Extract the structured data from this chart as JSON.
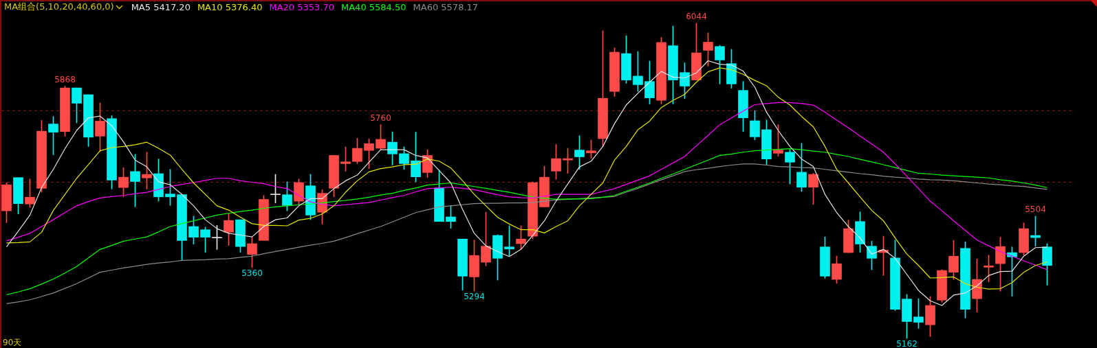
{
  "chart_data": {
    "type": "candlestick",
    "title": "MA组合(5,10,20,40,60,0)",
    "categories": [
      null,
      null,
      null,
      null,
      null,
      null,
      null,
      null,
      null,
      null,
      null,
      null,
      null,
      null,
      null,
      null,
      null,
      null,
      null,
      null,
      null,
      null,
      null,
      null,
      null,
      null,
      null,
      null,
      null,
      null,
      null,
      null,
      null,
      null,
      null,
      null,
      null,
      null,
      null,
      null,
      null,
      null,
      null,
      null,
      null,
      null,
      null,
      null,
      null,
      null,
      null,
      null,
      null,
      null,
      null,
      null,
      null,
      null,
      null,
      null,
      null,
      null,
      null,
      null,
      null,
      null,
      null,
      null,
      null,
      null,
      null,
      null,
      null,
      null,
      null,
      null,
      null,
      null,
      null,
      null,
      null,
      null,
      null,
      null,
      null,
      null,
      null,
      null,
      null,
      null
    ],
    "ylim": [
      5135,
      6109
    ],
    "yticks": [
      {
        "value": 5600,
        "label": null
      },
      {
        "value": 5800,
        "label": null
      }
    ],
    "grid": "y",
    "tick_labels": false,
    "legend": "top left",
    "ohlc": [
      [
        5519,
        5598,
        5486,
        5592
      ],
      [
        5612,
        5612,
        5510,
        5539
      ],
      [
        5538,
        5608,
        5528,
        5557
      ],
      [
        5582,
        5772,
        5571,
        5742
      ],
      [
        5762,
        5783,
        5676,
        5739
      ],
      [
        5741,
        5868,
        5728,
        5863
      ],
      [
        5863,
        5863,
        5765,
        5820
      ],
      [
        5844,
        5844,
        5699,
        5725
      ],
      [
        5728,
        5821,
        5685,
        5770
      ],
      [
        5777,
        5785,
        5580,
        5605
      ],
      [
        5584,
        5640,
        5558,
        5613
      ],
      [
        5629,
        5677,
        5530,
        5601
      ],
      [
        5611,
        5683,
        5580,
        5621
      ],
      [
        5623,
        5664,
        5546,
        5558
      ],
      [
        5566,
        5635,
        5534,
        5558
      ],
      [
        5564,
        5564,
        5380,
        5436
      ],
      [
        5475,
        5504,
        5426,
        5445
      ],
      [
        5466,
        5473,
        5403,
        5445
      ],
      [
        5443,
        5478,
        5411,
        5443
      ],
      [
        5459,
        5512,
        5422,
        5492
      ],
      [
        5494,
        5494,
        5403,
        5419
      ],
      [
        5397,
        5445,
        5360,
        5427
      ],
      [
        5436,
        5562,
        5436,
        5551
      ],
      [
        5564,
        5621,
        5541,
        5564
      ],
      [
        5564,
        5600,
        5519,
        5534
      ],
      [
        5546,
        5608,
        5537,
        5598
      ],
      [
        5589,
        5621,
        5494,
        5507
      ],
      [
        5515,
        5578,
        5482,
        5568
      ],
      [
        5582,
        5674,
        5558,
        5674
      ],
      [
        5651,
        5698,
        5630,
        5656
      ],
      [
        5657,
        5722,
        5651,
        5694
      ],
      [
        5688,
        5720,
        5637,
        5707
      ],
      [
        5694,
        5760,
        5690,
        5719
      ],
      [
        5711,
        5740,
        5647,
        5678
      ],
      [
        5679,
        5698,
        5635,
        5651
      ],
      [
        5659,
        5739,
        5600,
        5614
      ],
      [
        5626,
        5690,
        5612,
        5674
      ],
      [
        5583,
        5633,
        5489,
        5489
      ],
      [
        5502,
        5534,
        5470,
        5489
      ],
      [
        5440,
        5440,
        5297,
        5336
      ],
      [
        5334,
        5437,
        5294,
        5394
      ],
      [
        5375,
        5515,
        5365,
        5420
      ],
      [
        5450,
        5452,
        5325,
        5386
      ],
      [
        5418,
        5477,
        5392,
        5412
      ],
      [
        5427,
        5477,
        5412,
        5440
      ],
      [
        5448,
        5600,
        5440,
        5598
      ],
      [
        5530,
        5644,
        5530,
        5613
      ],
      [
        5630,
        5705,
        5607,
        5665
      ],
      [
        5661,
        5694,
        5624,
        5665
      ],
      [
        5689,
        5729,
        5635,
        5670
      ],
      [
        5681,
        5717,
        5666,
        5687
      ],
      [
        5721,
        6023,
        5699,
        5834
      ],
      [
        5853,
        5975,
        5839,
        5963
      ],
      [
        5959,
        6009,
        5876,
        5885
      ],
      [
        5896,
        5965,
        5853,
        5872
      ],
      [
        5881,
        5938,
        5818,
        5835
      ],
      [
        5828,
        6004,
        5818,
        5990
      ],
      [
        5981,
        6036,
        5818,
        5885
      ],
      [
        5906,
        5933,
        5833,
        5868
      ],
      [
        5885,
        6044,
        5885,
        5961
      ],
      [
        5968,
        6017,
        5924,
        5991
      ],
      [
        5979,
        5982,
        5874,
        5941
      ],
      [
        5931,
        5971,
        5862,
        5874
      ],
      [
        5856,
        5881,
        5741,
        5779
      ],
      [
        5771,
        5799,
        5718,
        5726
      ],
      [
        5746,
        5773,
        5649,
        5664
      ],
      [
        5680,
        5760,
        5672,
        5689
      ],
      [
        5683,
        5690,
        5594,
        5655
      ],
      [
        5627,
        5708,
        5573,
        5585
      ],
      [
        5585,
        5624,
        5537,
        5621
      ],
      [
        5418,
        5446,
        5330,
        5336
      ],
      [
        5327,
        5392,
        5316,
        5371
      ],
      [
        5402,
        5493,
        5402,
        5469
      ],
      [
        5489,
        5516,
        5403,
        5426
      ],
      [
        5420,
        5434,
        5354,
        5386
      ],
      [
        5402,
        5448,
        5338,
        5409
      ],
      [
        5387,
        5437,
        5240,
        5243
      ],
      [
        5272,
        5285,
        5162,
        5209
      ],
      [
        5222,
        5273,
        5190,
        5207
      ],
      [
        5200,
        5279,
        5167,
        5254
      ],
      [
        5269,
        5354,
        5263,
        5352
      ],
      [
        5347,
        5436,
        5327,
        5392
      ],
      [
        5414,
        5432,
        5219,
        5243
      ],
      [
        5273,
        5384,
        5236,
        5327
      ],
      [
        5361,
        5395,
        5320,
        5365
      ],
      [
        5371,
        5445,
        5294,
        5419
      ],
      [
        5402,
        5418,
        5280,
        5390
      ],
      [
        5402,
        5485,
        5395,
        5469
      ],
      [
        5450,
        5504,
        5420,
        5444
      ],
      [
        5418,
        5427,
        5311,
        5366
      ]
    ],
    "colors": [
      "#ff4a4a",
      "#00f0f0",
      "#ff4a4a",
      "#ff4a4a",
      "#00f0f0",
      "#ff4a4a",
      "#00f0f0",
      "#00f0f0",
      "#ff4a4a",
      "#00f0f0",
      "#ff4a4a",
      "#00f0f0",
      "#ff4a4a",
      "#00f0f0",
      "#00f0f0",
      "#00f0f0",
      "#00f0f0",
      "#00f0f0",
      "#e8e8e8",
      "#ff4a4a",
      "#00f0f0",
      "#ff4a4a",
      "#ff4a4a",
      "#e8e8e8",
      "#00f0f0",
      "#ff4a4a",
      "#00f0f0",
      "#ff4a4a",
      "#ff4a4a",
      "#ff4a4a",
      "#ff4a4a",
      "#ff4a4a",
      "#ff4a4a",
      "#00f0f0",
      "#00f0f0",
      "#00f0f0",
      "#ff4a4a",
      "#00f0f0",
      "#00f0f0",
      "#00f0f0",
      "#ff4a4a",
      "#ff4a4a",
      "#00f0f0",
      "#00f0f0",
      "#ff4a4a",
      "#ff4a4a",
      "#ff4a4a",
      "#ff4a4a",
      "#ff4a4a",
      "#00f0f0",
      "#ff4a4a",
      "#ff4a4a",
      "#ff4a4a",
      "#00f0f0",
      "#00f0f0",
      "#00f0f0",
      "#ff4a4a",
      "#00f0f0",
      "#00f0f0",
      "#ff4a4a",
      "#ff4a4a",
      "#00f0f0",
      "#00f0f0",
      "#00f0f0",
      "#00f0f0",
      "#00f0f0",
      "#ff4a4a",
      "#00f0f0",
      "#00f0f0",
      "#ff4a4a",
      "#00f0f0",
      "#ff4a4a",
      "#ff4a4a",
      "#00f0f0",
      "#00f0f0",
      "#ff4a4a",
      "#00f0f0",
      "#00f0f0",
      "#00f0f0",
      "#ff4a4a",
      "#ff4a4a",
      "#ff4a4a",
      "#00f0f0",
      "#ff4a4a",
      "#ff4a4a",
      "#ff4a4a",
      "#00f0f0",
      "#ff4a4a",
      "#00f0f0",
      "#00f0f0"
    ],
    "value_labels": [
      null,
      null,
      null,
      null,
      null,
      "5868",
      null,
      null,
      null,
      null,
      null,
      null,
      null,
      null,
      null,
      null,
      null,
      null,
      null,
      null,
      null,
      "5360",
      null,
      null,
      null,
      null,
      null,
      null,
      null,
      null,
      null,
      null,
      "5760",
      null,
      null,
      null,
      null,
      null,
      null,
      null,
      "5294",
      null,
      null,
      null,
      null,
      null,
      null,
      null,
      null,
      null,
      null,
      null,
      null,
      null,
      null,
      null,
      null,
      null,
      null,
      "6044",
      null,
      null,
      null,
      null,
      null,
      null,
      null,
      null,
      null,
      null,
      null,
      null,
      null,
      null,
      null,
      null,
      null,
      "5162",
      null,
      null,
      null,
      null,
      null,
      null,
      null,
      null,
      null,
      null,
      "5504",
      null
    ],
    "series": [
      {
        "name": "MA5 5417.20",
        "type": "line",
        "color": "#e6e6e6",
        "values": [
          5418,
          5462,
          5507,
          5584,
          5635,
          5693,
          5744,
          5779,
          5784,
          5757,
          5712,
          5661,
          5642,
          5600,
          5592,
          5565,
          5533,
          5494,
          5469,
          5456,
          5451,
          5446,
          5475,
          5494,
          5499,
          5533,
          5553,
          5553,
          5581,
          5603,
          5619,
          5655,
          5690,
          5690,
          5690,
          5674,
          5667,
          5632,
          5597,
          5523,
          5456,
          5421,
          5405,
          5391,
          5411,
          5450,
          5491,
          5546,
          5594,
          5642,
          5658,
          5699,
          5763,
          5815,
          5848,
          5879,
          5909,
          5893,
          5891,
          5905,
          5939,
          5929,
          5927,
          5910,
          5865,
          5795,
          5744,
          5699,
          5664,
          5643,
          5565,
          5514,
          5475,
          5443,
          5398,
          5411,
          5386,
          5341,
          5296,
          5267,
          5254,
          5283,
          5289,
          5309,
          5338,
          5349,
          5350,
          5392,
          5416,
          5417
        ]
      },
      {
        "name": "MA10 5376.40",
        "type": "line",
        "color": "#e6e600",
        "values": [
          5429,
          5430,
          5432,
          5459,
          5520,
          5565,
          5610,
          5648,
          5687,
          5696,
          5699,
          5704,
          5711,
          5694,
          5675,
          5635,
          5597,
          5565,
          5533,
          5521,
          5501,
          5483,
          5478,
          5478,
          5477,
          5493,
          5498,
          5510,
          5533,
          5571,
          5603,
          5628,
          5637,
          5642,
          5648,
          5649,
          5664,
          5658,
          5639,
          5603,
          5565,
          5533,
          5501,
          5482,
          5466,
          5466,
          5457,
          5475,
          5491,
          5533,
          5565,
          5597,
          5661,
          5699,
          5746,
          5770,
          5808,
          5828,
          5845,
          5879,
          5908,
          5919,
          5914,
          5901,
          5884,
          5869,
          5837,
          5815,
          5783,
          5754,
          5699,
          5635,
          5597,
          5558,
          5520,
          5491,
          5443,
          5398,
          5366,
          5331,
          5332,
          5334,
          5315,
          5305,
          5300,
          5301,
          5318,
          5347,
          5366,
          5376
        ]
      },
      {
        "name": "MA20 5353.70",
        "type": "line",
        "color": "#ff00ff",
        "values": [
          5435,
          5445,
          5456,
          5475,
          5494,
          5514,
          5533,
          5545,
          5555,
          5559,
          5562,
          5567,
          5571,
          5579,
          5587,
          5593,
          5598,
          5604,
          5610,
          5610,
          5603,
          5599,
          5595,
          5587,
          5581,
          5562,
          5544,
          5537,
          5533,
          5536,
          5539,
          5542,
          5549,
          5556,
          5562,
          5572,
          5581,
          5583,
          5585,
          5582,
          5578,
          5571,
          5564,
          5558,
          5556,
          5555,
          5560,
          5565,
          5565,
          5565,
          5565,
          5573,
          5581,
          5593,
          5605,
          5617,
          5635,
          5653,
          5671,
          5701,
          5730,
          5760,
          5779,
          5798,
          5816,
          5819,
          5822,
          5822,
          5819,
          5815,
          5795,
          5773,
          5751,
          5728,
          5706,
          5683,
          5650,
          5616,
          5581,
          5546,
          5519,
          5491,
          5464,
          5437,
          5421,
          5405,
          5392,
          5379,
          5367,
          5354
        ]
      },
      {
        "name": "MA40 5584.50",
        "type": "line",
        "color": "#00ff00",
        "values": [
          5284,
          5292,
          5301,
          5314,
          5328,
          5345,
          5363,
          5387,
          5411,
          5422,
          5434,
          5440,
          5446,
          5460,
          5475,
          5483,
          5491,
          5499,
          5507,
          5512,
          5517,
          5521,
          5526,
          5530,
          5533,
          5536,
          5538,
          5541,
          5545,
          5548,
          5552,
          5557,
          5563,
          5568,
          5576,
          5583,
          5591,
          5594,
          5597,
          5592,
          5587,
          5582,
          5576,
          5571,
          5564,
          5558,
          5554,
          5551,
          5552,
          5552,
          5553,
          5557,
          5562,
          5574,
          5585,
          5597,
          5610,
          5622,
          5635,
          5648,
          5661,
          5674,
          5678,
          5683,
          5687,
          5689,
          5691,
          5693,
          5690,
          5686,
          5683,
          5677,
          5671,
          5663,
          5656,
          5648,
          5640,
          5632,
          5624,
          5622,
          5619,
          5617,
          5615,
          5613,
          5611,
          5606,
          5602,
          5597,
          5591,
          5584
        ]
      },
      {
        "name": "MA60 5578.17",
        "type": "line",
        "color": "#8c8c8c",
        "values": [
          5259,
          5264,
          5270,
          5279,
          5289,
          5302,
          5315,
          5331,
          5347,
          5353,
          5359,
          5364,
          5369,
          5373,
          5376,
          5380,
          5381,
          5382,
          5384,
          5385,
          5389,
          5392,
          5399,
          5405,
          5411,
          5417,
          5423,
          5428,
          5434,
          5444,
          5455,
          5465,
          5475,
          5488,
          5501,
          5514,
          5522,
          5530,
          5533,
          5536,
          5539,
          5540,
          5540,
          5541,
          5541,
          5542,
          5546,
          5549,
          5551,
          5553,
          5555,
          5557,
          5559,
          5571,
          5582,
          5594,
          5606,
          5617,
          5629,
          5634,
          5638,
          5643,
          5647,
          5650,
          5650,
          5647,
          5643,
          5642,
          5640,
          5639,
          5635,
          5631,
          5627,
          5623,
          5620,
          5616,
          5613,
          5611,
          5608,
          5606,
          5605,
          5603,
          5600,
          5597,
          5594,
          5592,
          5589,
          5587,
          5583,
          5579
        ]
      }
    ],
    "annotations": [
      "90天"
    ]
  }
}
